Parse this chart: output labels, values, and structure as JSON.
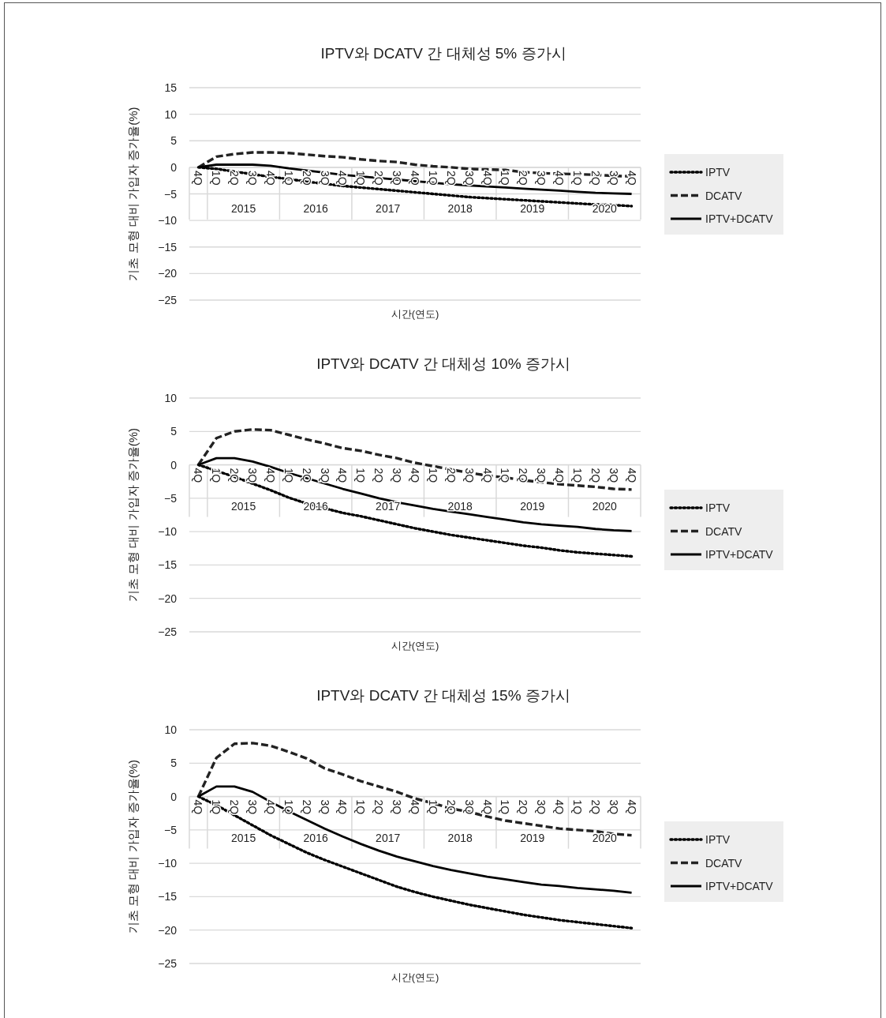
{
  "chart_data": [
    {
      "type": "line",
      "title": "IPTV와 DCATV 간 대체성 5% 증가시",
      "xlabel": "시간(연도)",
      "ylabel": "기초 모형 대비 가입자 증가율(%)",
      "categories": [
        "4Q",
        "1Q",
        "2Q",
        "3Q",
        "4Q",
        "1Q",
        "2Q",
        "3Q",
        "4Q",
        "1Q",
        "2Q",
        "3Q",
        "4Q",
        "1Q",
        "2Q",
        "3Q",
        "4Q",
        "1Q",
        "2Q",
        "3Q",
        "4Q",
        "1Q",
        "2Q",
        "3Q",
        "4Q"
      ],
      "annotations": [
        "2015",
        "2016",
        "2017",
        "2018",
        "2019",
        "2020"
      ],
      "series": [
        {
          "name": "IPTV",
          "color": "#000000",
          "line_style": "dotted",
          "values": [
            0,
            -0.3,
            -0.8,
            -1.3,
            -1.8,
            -2.2,
            -2.7,
            -3.1,
            -3.5,
            -3.8,
            -4.1,
            -4.4,
            -4.7,
            -5.0,
            -5.3,
            -5.6,
            -5.8,
            -6.0,
            -6.2,
            -6.4,
            -6.6,
            -6.8,
            -7.0,
            -7.1,
            -7.3
          ]
        },
        {
          "name": "DCATV",
          "color": "#222222",
          "line_style": "dashed",
          "values": [
            0,
            2.0,
            2.5,
            2.8,
            2.8,
            2.7,
            2.4,
            2.1,
            1.9,
            1.5,
            1.2,
            1.0,
            0.5,
            0.2,
            0.0,
            -0.3,
            -0.4,
            -0.5,
            -0.9,
            -1.1,
            -1.2,
            -1.3,
            -1.4,
            -1.6,
            -1.7
          ]
        },
        {
          "name": "IPTV+DCATV",
          "color": "#000000",
          "line_style": "solid",
          "values": [
            0,
            0.5,
            0.5,
            0.5,
            0.3,
            -0.2,
            -0.6,
            -1.0,
            -1.4,
            -1.7,
            -2.0,
            -2.3,
            -2.6,
            -2.9,
            -3.2,
            -3.4,
            -3.6,
            -3.8,
            -4.0,
            -4.2,
            -4.4,
            -4.6,
            -4.8,
            -4.9,
            -5.0
          ]
        }
      ],
      "ylim": [
        -25,
        15
      ],
      "yticks": [
        15,
        10,
        5,
        0,
        {
          "value": -5,
          "label": "−5"
        },
        {
          "value": -10,
          "label": "−10"
        },
        {
          "value": -15,
          "label": "−15"
        },
        {
          "value": -20,
          "label": "−20"
        },
        {
          "value": -25,
          "label": "−25"
        }
      ],
      "grid": "y",
      "legend": "right"
    },
    {
      "type": "line",
      "title": "IPTV와 DCATV 간 대체성 10% 증가시",
      "xlabel": "시간(연도)",
      "ylabel": "기초 모형 대비 가입자 증가율(%)",
      "categories": [
        "4Q",
        "1Q",
        "2Q",
        "3Q",
        "4Q",
        "1Q",
        "2Q",
        "3Q",
        "4Q",
        "1Q",
        "2Q",
        "3Q",
        "4Q",
        "1Q",
        "2Q",
        "3Q",
        "4Q",
        "1Q",
        "2Q",
        "3Q",
        "4Q",
        "1Q",
        "2Q",
        "3Q",
        "4Q"
      ],
      "annotations": [
        "2015",
        "2016",
        "2017",
        "2018",
        "2019",
        "2020"
      ],
      "series": [
        {
          "name": "IPTV",
          "color": "#000000",
          "line_style": "dotted",
          "values": [
            0,
            -0.9,
            -1.8,
            -2.8,
            -3.8,
            -4.9,
            -5.8,
            -6.5,
            -7.2,
            -7.7,
            -8.3,
            -8.9,
            -9.5,
            -10.0,
            -10.5,
            -10.9,
            -11.3,
            -11.7,
            -12.1,
            -12.4,
            -12.8,
            -13.1,
            -13.3,
            -13.5,
            -13.7
          ]
        },
        {
          "name": "DCATV",
          "color": "#222222",
          "line_style": "dashed",
          "values": [
            0,
            4.0,
            5.0,
            5.3,
            5.2,
            4.5,
            3.8,
            3.2,
            2.5,
            2.1,
            1.5,
            1.0,
            0.3,
            -0.2,
            -0.7,
            -1.2,
            -1.6,
            -1.9,
            -2.3,
            -2.6,
            -2.9,
            -3.1,
            -3.3,
            -3.6,
            -3.7
          ]
        },
        {
          "name": "IPTV+DCATV",
          "color": "#000000",
          "line_style": "solid",
          "values": [
            0,
            1.0,
            1.0,
            0.5,
            -0.3,
            -1.2,
            -2.0,
            -2.8,
            -3.6,
            -4.3,
            -5.0,
            -5.6,
            -6.1,
            -6.6,
            -7.0,
            -7.4,
            -7.8,
            -8.2,
            -8.6,
            -8.9,
            -9.1,
            -9.3,
            -9.6,
            -9.8,
            -9.9
          ]
        }
      ],
      "ylim": [
        -25,
        10
      ],
      "yticks": [
        10,
        5,
        0,
        {
          "value": -5,
          "label": "−5"
        },
        {
          "value": -10,
          "label": "−10"
        },
        {
          "value": -15,
          "label": "−15"
        },
        {
          "value": -20,
          "label": "−20"
        },
        {
          "value": -25,
          "label": "−25"
        }
      ],
      "grid": "y",
      "legend": "right"
    },
    {
      "type": "line",
      "title": "IPTV와 DCATV 간 대체성 15% 증가시",
      "xlabel": "시간(연도)",
      "ylabel": "기초 모형 대비 가입자 증가율(%)",
      "categories": [
        "4Q",
        "1Q",
        "2Q",
        "3Q",
        "4Q",
        "1Q",
        "2Q",
        "3Q",
        "4Q",
        "1Q",
        "2Q",
        "3Q",
        "4Q",
        "1Q",
        "2Q",
        "3Q",
        "4Q",
        "1Q",
        "2Q",
        "3Q",
        "4Q",
        "1Q",
        "2Q",
        "3Q",
        "4Q"
      ],
      "annotations": [
        "2015",
        "2016",
        "2017",
        "2018",
        "2019",
        "2020"
      ],
      "series": [
        {
          "name": "IPTV",
          "color": "#000000",
          "line_style": "dotted",
          "values": [
            0,
            -1.3,
            -2.8,
            -4.3,
            -5.8,
            -7.1,
            -8.4,
            -9.5,
            -10.5,
            -11.5,
            -12.5,
            -13.5,
            -14.3,
            -15.0,
            -15.6,
            -16.2,
            -16.7,
            -17.2,
            -17.7,
            -18.1,
            -18.5,
            -18.8,
            -19.1,
            -19.4,
            -19.7
          ]
        },
        {
          "name": "DCATV",
          "color": "#222222",
          "line_style": "dashed",
          "values": [
            0,
            5.8,
            7.9,
            8.0,
            7.6,
            6.7,
            5.7,
            4.2,
            3.3,
            2.3,
            1.5,
            0.7,
            -0.3,
            -1.0,
            -1.8,
            -2.3,
            -3.0,
            -3.6,
            -4.0,
            -4.4,
            -4.8,
            -5.0,
            -5.2,
            -5.6,
            -5.8
          ]
        },
        {
          "name": "IPTV+DCATV",
          "color": "#000000",
          "line_style": "solid",
          "values": [
            0,
            1.5,
            1.5,
            0.7,
            -0.8,
            -2.2,
            -3.5,
            -4.8,
            -6.0,
            -7.1,
            -8.1,
            -9.0,
            -9.7,
            -10.4,
            -11.0,
            -11.5,
            -12.0,
            -12.4,
            -12.8,
            -13.2,
            -13.4,
            -13.7,
            -13.9,
            -14.1,
            -14.4
          ]
        }
      ],
      "ylim": [
        -25,
        10
      ],
      "yticks": [
        10,
        5,
        0,
        {
          "value": -5,
          "label": "−5"
        },
        {
          "value": -10,
          "label": "−10"
        },
        {
          "value": -15,
          "label": "−15"
        },
        {
          "value": -20,
          "label": "−20"
        },
        {
          "value": -25,
          "label": "−25"
        }
      ],
      "grid": "y",
      "legend": "right"
    }
  ]
}
